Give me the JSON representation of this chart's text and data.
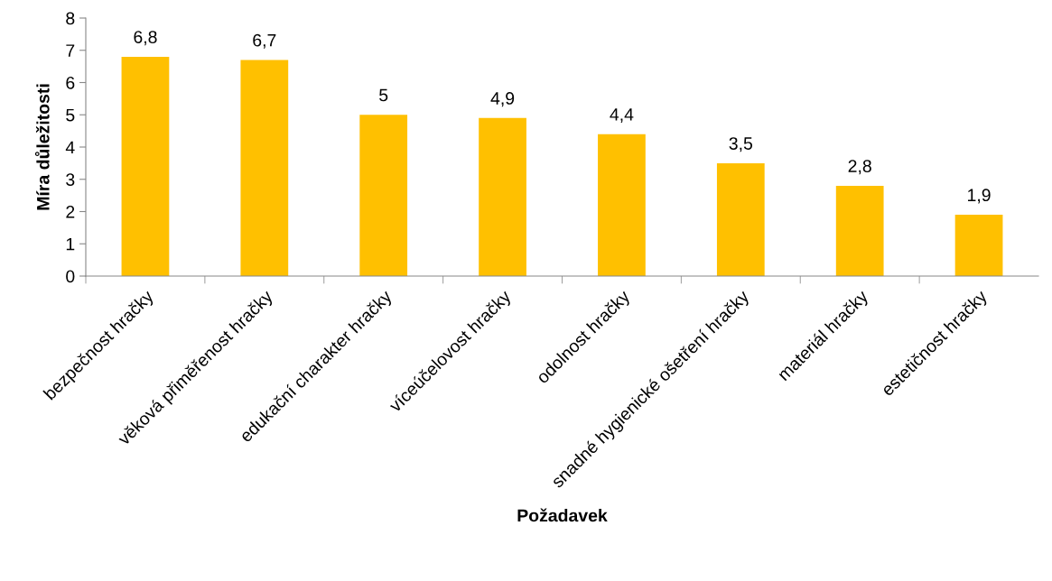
{
  "chart_data": {
    "type": "bar",
    "xlabel": "Požadavek",
    "ylabel": "Míra důležitosti",
    "categories": [
      "bezpečnost hračky",
      "věková přiměřenost hračky",
      "edukační charakter hračky",
      "víceúčelovost hračky",
      "odolnost hračky",
      "snadné hygienické ošetření hračky",
      "materiál hračky",
      "estetičnost hračky"
    ],
    "values": [
      6.8,
      6.7,
      5,
      4.9,
      4.4,
      3.5,
      2.8,
      1.9
    ],
    "value_labels": [
      "6,8",
      "6,7",
      "5",
      "4,9",
      "4,4",
      "3,5",
      "2,8",
      "1,9"
    ],
    "color": "#ffc000",
    "ylim": [
      0,
      8
    ],
    "yticks": [
      0,
      1,
      2,
      3,
      4,
      5,
      6,
      7,
      8
    ],
    "grid": false,
    "legend": false
  }
}
